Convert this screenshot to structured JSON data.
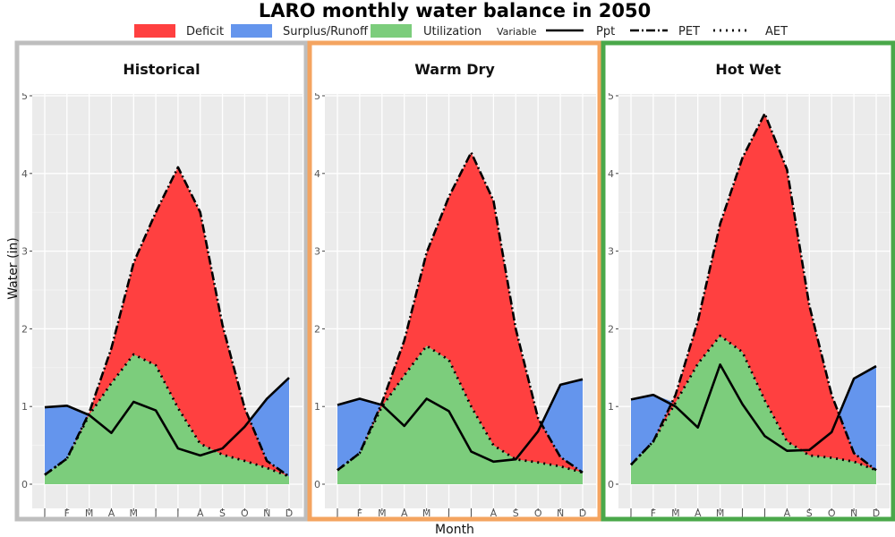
{
  "chart_data": {
    "type": "area",
    "title": "LARO monthly water balance in 2050",
    "xlabel": "Month",
    "ylabel": "Water (in)",
    "ylim": [
      0,
      5
    ],
    "yticks": [
      0,
      1,
      2,
      3,
      4,
      5
    ],
    "categories": [
      "J",
      "F",
      "M",
      "A",
      "M",
      "J",
      "J",
      "A",
      "S",
      "O",
      "N",
      "D"
    ],
    "legend": {
      "fill_items": [
        {
          "label": "Deficit",
          "color": "#ff4040"
        },
        {
          "label": "Surplus/Runoff",
          "color": "#6495ed"
        },
        {
          "label": "Utilization",
          "color": "#7ccd7c"
        }
      ],
      "variable_title": "Variable",
      "line_items": [
        {
          "label": "Ppt",
          "style": "solid"
        },
        {
          "label": "PET",
          "style": "dashdot"
        },
        {
          "label": "AET",
          "style": "dotted"
        }
      ],
      "placement": "top"
    },
    "panels": [
      {
        "name": "Historical",
        "border_color": "#bebebe",
        "series": [
          {
            "name": "Ppt",
            "values": [
              0.99,
              1.01,
              0.89,
              0.66,
              1.06,
              0.95,
              0.46,
              0.37,
              0.46,
              0.74,
              1.1,
              1.37
            ]
          },
          {
            "name": "PET",
            "values": [
              0.12,
              0.33,
              0.92,
              1.75,
              2.85,
              3.5,
              4.08,
              3.5,
              2.05,
              0.98,
              0.3,
              0.1
            ]
          },
          {
            "name": "AET",
            "values": [
              0.12,
              0.33,
              0.89,
              1.3,
              1.67,
              1.53,
              0.98,
              0.52,
              0.38,
              0.3,
              0.21,
              0.1
            ]
          }
        ]
      },
      {
        "name": "Warm Dry",
        "border_color": "#f4a460",
        "series": [
          {
            "name": "Ppt",
            "values": [
              1.02,
              1.1,
              1.02,
              0.75,
              1.1,
              0.94,
              0.42,
              0.29,
              0.32,
              0.68,
              1.28,
              1.35
            ]
          },
          {
            "name": "PET",
            "values": [
              0.18,
              0.4,
              1.05,
              1.85,
              2.98,
              3.7,
              4.27,
              3.65,
              2.0,
              0.85,
              0.35,
              0.15
            ]
          },
          {
            "name": "AET",
            "values": [
              0.18,
              0.4,
              1.0,
              1.4,
              1.78,
              1.6,
              1.0,
              0.5,
              0.32,
              0.28,
              0.23,
              0.15
            ]
          }
        ]
      },
      {
        "name": "Hot Wet",
        "border_color": "#4aa84a",
        "series": [
          {
            "name": "Ppt",
            "values": [
              1.09,
              1.15,
              1.0,
              0.73,
              1.54,
              1.03,
              0.62,
              0.43,
              0.44,
              0.67,
              1.36,
              1.52
            ]
          },
          {
            "name": "PET",
            "values": [
              0.25,
              0.55,
              1.15,
              2.1,
              3.35,
              4.2,
              4.77,
              4.05,
              2.3,
              1.15,
              0.4,
              0.18
            ]
          },
          {
            "name": "AET",
            "values": [
              0.25,
              0.55,
              1.05,
              1.55,
              1.91,
              1.7,
              1.08,
              0.55,
              0.37,
              0.34,
              0.29,
              0.18
            ]
          }
        ]
      }
    ]
  }
}
